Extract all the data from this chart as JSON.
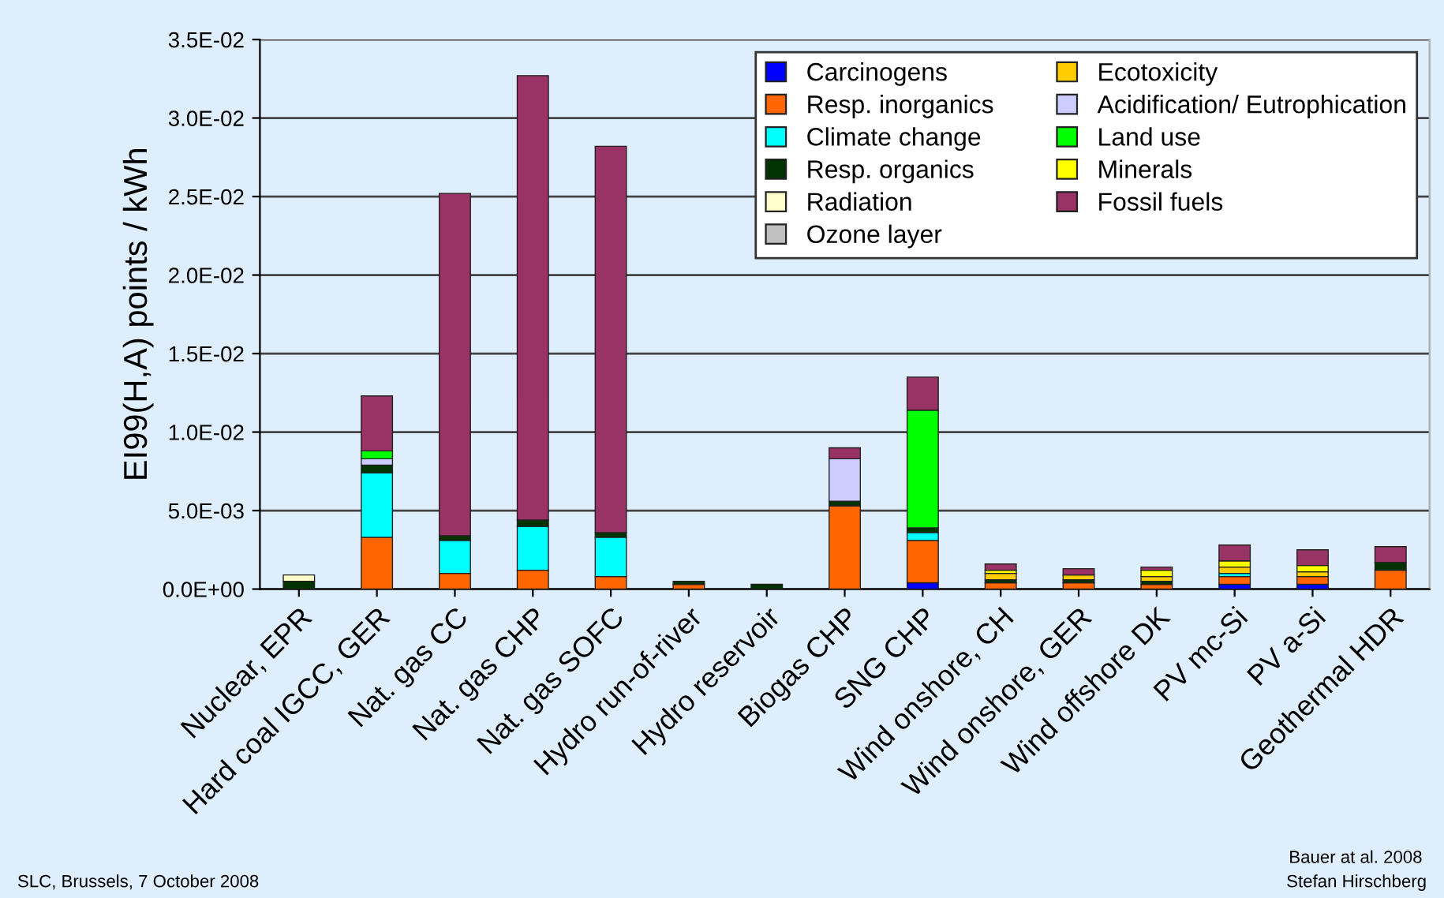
{
  "chart_data": {
    "type": "bar",
    "stacked": true,
    "ylabel": "EI99(H,A) points / kWh",
    "categories": [
      "Nuclear, EPR",
      "Hard coal IGCC, GER",
      "Nat. gas CC",
      "Nat. gas CHP",
      "Nat. gas SOFC",
      "Hydro run-of-river",
      "Hydro reservoir",
      "Biogas CHP",
      "SNG CHP",
      "Wind onshore, CH",
      "Wind onshore, GER",
      "Wind offshore DK",
      "PV mc-Si",
      "PV a-Si",
      "Geothermal HDR"
    ],
    "series": [
      {
        "name": "Carcinogens",
        "color": "#0000ff",
        "values": [
          0,
          0,
          0,
          0,
          0,
          0,
          0,
          0,
          0.0004,
          0,
          0,
          0,
          0.0003,
          0.0003,
          0
        ]
      },
      {
        "name": "Resp. inorganics",
        "color": "#ff6600",
        "values": [
          0,
          0.0033,
          0.001,
          0.0012,
          0.0008,
          0.0003,
          0,
          0.0053,
          0.0027,
          0.0004,
          0.0004,
          0.0003,
          0.0005,
          0.0005,
          0.0012
        ]
      },
      {
        "name": "Climate change",
        "color": "#00ffff",
        "values": [
          0,
          0.0041,
          0.0021,
          0.0028,
          0.0025,
          0,
          0,
          0,
          0.0005,
          0,
          0,
          0,
          0.0002,
          0,
          0
        ]
      },
      {
        "name": "Resp. organics",
        "color": "#003300",
        "values": [
          0.0005,
          0.0005,
          0.0003,
          0.0004,
          0.0003,
          0.0002,
          0.0003,
          0.0003,
          0.0003,
          0.0002,
          0.0002,
          0.0002,
          0,
          0,
          0.0005
        ]
      },
      {
        "name": "Radiation",
        "color": "#ffffcc",
        "values": [
          0.0004,
          0,
          0,
          0,
          0,
          0,
          0,
          0,
          0,
          0,
          0,
          0,
          0,
          0,
          0
        ]
      },
      {
        "name": "Ozone layer",
        "color": "#c0c0c0",
        "values": [
          0,
          0,
          0,
          0,
          0,
          0,
          0,
          0,
          0,
          0,
          0,
          0,
          0,
          0,
          0
        ]
      },
      {
        "name": "Ecotoxicity",
        "color": "#ffcc00",
        "values": [
          0,
          0,
          0,
          0,
          0,
          0,
          0,
          0,
          0,
          0.0004,
          0.0003,
          0.0003,
          0.0004,
          0.0003,
          0
        ]
      },
      {
        "name": "Acidification/ Eutrophication",
        "color": "#ccccff",
        "values": [
          0,
          0.0004,
          0,
          0,
          0,
          0,
          0,
          0.0027,
          0,
          0,
          0,
          0,
          0,
          0,
          0
        ]
      },
      {
        "name": "Land use",
        "color": "#00ff00",
        "values": [
          0,
          0.0005,
          0,
          0,
          0,
          0,
          0,
          0,
          0.0075,
          0,
          0,
          0,
          0,
          0,
          0
        ]
      },
      {
        "name": "Minerals",
        "color": "#ffff00",
        "values": [
          0,
          0,
          0,
          0,
          0,
          0,
          0,
          0,
          0,
          0.0002,
          0,
          0.0004,
          0.0004,
          0.0004,
          0
        ]
      },
      {
        "name": "Fossil fuels",
        "color": "#993366",
        "values": [
          0,
          0.0035,
          0.0218,
          0.0283,
          0.0246,
          0,
          0,
          0.0007,
          0.0021,
          0.0004,
          0.0004,
          0.0002,
          0.001,
          0.001,
          0.001
        ]
      }
    ],
    "ylim": [
      0,
      0.035
    ],
    "yticks": [
      {
        "value": 0,
        "label": "0.0E+00"
      },
      {
        "value": 0.005,
        "label": "5.0E-03"
      },
      {
        "value": 0.01,
        "label": "1.0E-02"
      },
      {
        "value": 0.015,
        "label": "1.5E-02"
      },
      {
        "value": 0.02,
        "label": "2.0E-02"
      },
      {
        "value": 0.025,
        "label": "2.5E-02"
      },
      {
        "value": 0.03,
        "label": "3.0E-02"
      },
      {
        "value": 0.035,
        "label": "3.5E-02"
      }
    ],
    "grid": "y",
    "legend": "top right",
    "annotations": [
      "Bauer at al. 2008",
      "SLC, Brussels, 7 October 2008",
      "Stefan Hirschberg"
    ]
  }
}
